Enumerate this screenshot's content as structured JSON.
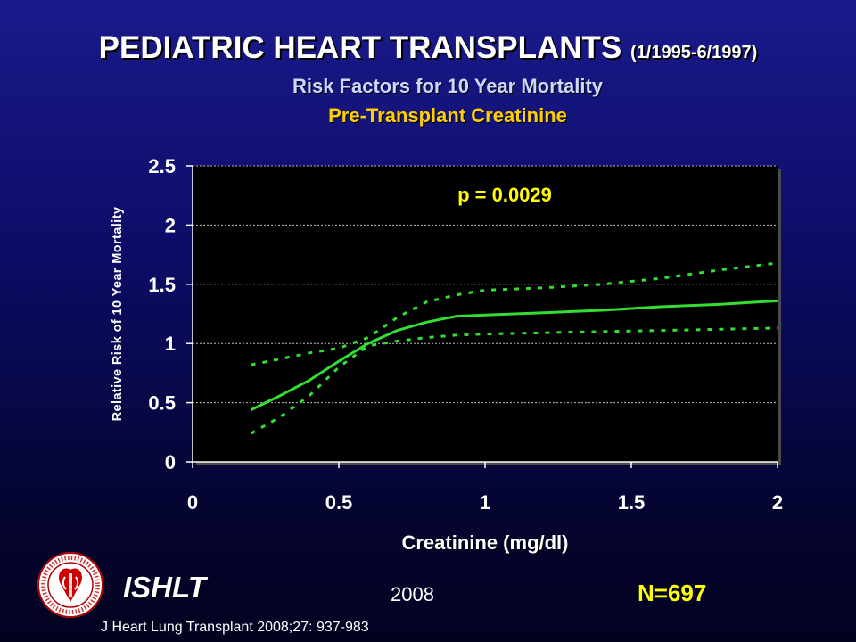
{
  "header": {
    "title": "PEDIATRIC HEART TRANSPLANTS",
    "title_range": "(1/1995-6/1997)",
    "subtitle": "Risk Factors for 10 Year Mortality",
    "subtitle2": "Pre-Transplant Creatinine"
  },
  "chart_data": {
    "type": "line",
    "ylabel": "Relative Risk of 10 Year Mortality",
    "xlabel": "Creatinine (mg/dl)",
    "xlim": [
      0,
      2
    ],
    "ylim": [
      0,
      2.5
    ],
    "x_ticks": [
      "0",
      "0.5",
      "1",
      "1.5",
      "2"
    ],
    "y_ticks": [
      "0",
      "0.5",
      "1",
      "1.5",
      "2",
      "2.5"
    ],
    "grid": "horizontal",
    "annotation": "p = 0.0029",
    "plot_background": "#000000",
    "line_color": "#33dd33",
    "series": [
      {
        "style": "solid",
        "x": [
          0.2,
          0.3,
          0.4,
          0.5,
          0.6,
          0.7,
          0.8,
          0.9,
          1.0,
          1.2,
          1.4,
          1.6,
          1.8,
          2.0
        ],
        "y": [
          0.44,
          0.56,
          0.69,
          0.85,
          1.0,
          1.11,
          1.18,
          1.23,
          1.24,
          1.26,
          1.28,
          1.31,
          1.33,
          1.36
        ]
      },
      {
        "style": "dashed",
        "x": [
          0.2,
          0.3,
          0.4,
          0.5,
          0.6,
          0.7,
          0.8,
          0.9,
          1.0,
          1.2,
          1.4,
          1.6,
          1.8,
          2.0
        ],
        "y": [
          0.82,
          0.87,
          0.92,
          0.96,
          1.05,
          1.22,
          1.35,
          1.41,
          1.45,
          1.47,
          1.5,
          1.55,
          1.62,
          1.68
        ]
      },
      {
        "style": "dashed",
        "x": [
          0.2,
          0.3,
          0.4,
          0.5,
          0.6,
          0.7,
          0.8,
          0.9,
          1.0,
          1.2,
          1.4,
          1.6,
          1.8,
          2.0
        ],
        "y": [
          0.24,
          0.38,
          0.56,
          0.8,
          0.98,
          1.02,
          1.05,
          1.07,
          1.08,
          1.09,
          1.1,
          1.11,
          1.12,
          1.13
        ]
      }
    ]
  },
  "footer": {
    "org": "ISHLT",
    "year": "2008",
    "n": "N=697",
    "citation": "J Heart Lung Transplant 2008;27: 937-983"
  }
}
